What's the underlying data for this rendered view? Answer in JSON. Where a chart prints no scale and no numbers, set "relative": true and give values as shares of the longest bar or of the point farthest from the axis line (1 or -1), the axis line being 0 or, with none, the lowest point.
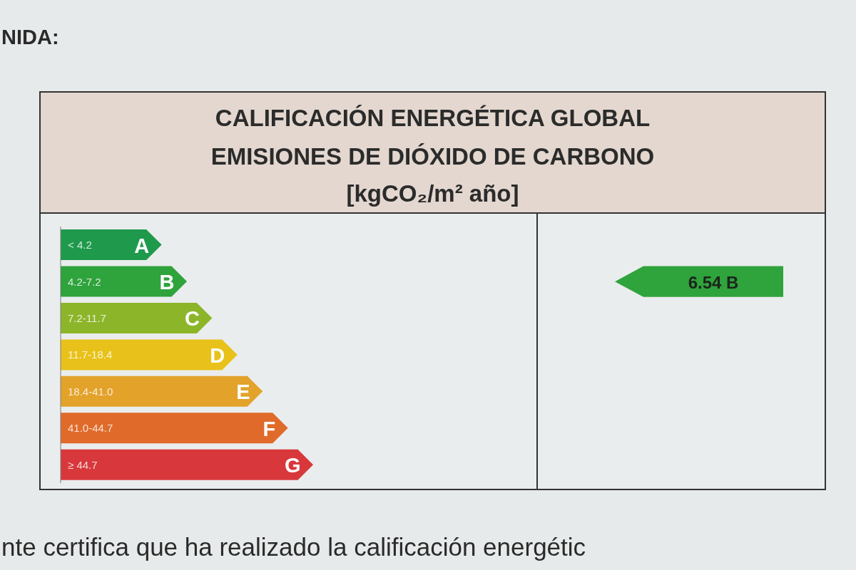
{
  "chart_data": {
    "type": "bar",
    "orientation": "horizontal",
    "relative": true,
    "title": "CALIFICACIÓN ENERGÉTICA GLOBAL",
    "subtitle": "EMISIONES DE DIÓXIDO DE CARBONO",
    "xlabel": "[kgCO₂/m² año]",
    "categories": [
      "A",
      "B",
      "C",
      "D",
      "E",
      "F",
      "G"
    ],
    "values": [
      0.4,
      0.5,
      0.6,
      0.7,
      0.8,
      0.9,
      1
    ],
    "colors": [
      "#1f9a4c",
      "#2fa33c",
      "#8db52a",
      "#e8c21a",
      "#e3a22a",
      "#e06a2a",
      "#d8383c"
    ],
    "annotations": [
      "NIDA:",
      "< 4.2",
      "4.2-7.2",
      "7.2-11.7",
      "11.7-18.4",
      "18.4-41.0",
      "41.0-44.7",
      "≥ 44.7",
      "6.54 B",
      "nte certifica que ha realizado la calificación energétic"
    ]
  }
}
